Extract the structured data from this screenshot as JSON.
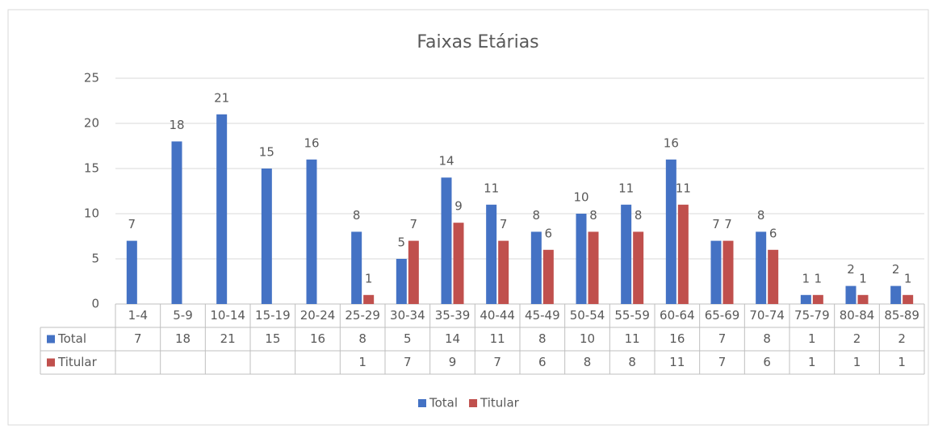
{
  "chart_data": {
    "type": "bar",
    "title": "Faixas Etárias",
    "categories": [
      "1-4",
      "5-9",
      "10-14",
      "15-19",
      "20-24",
      "25-29",
      "30-34",
      "35-39",
      "40-44",
      "45-49",
      "50-54",
      "55-59",
      "60-64",
      "65-69",
      "70-74",
      "75-79",
      "80-84",
      "85-89"
    ],
    "series": [
      {
        "name": "Total",
        "color": "#4472c4",
        "values": [
          7,
          18,
          21,
          15,
          16,
          8,
          5,
          14,
          11,
          8,
          10,
          11,
          16,
          7,
          8,
          1,
          2,
          2
        ]
      },
      {
        "name": "Titular",
        "color": "#c0504d",
        "values": [
          null,
          null,
          null,
          null,
          null,
          1,
          7,
          9,
          7,
          6,
          8,
          8,
          11,
          7,
          6,
          1,
          1,
          1
        ]
      }
    ],
    "ylim": [
      0,
      25
    ],
    "yticks": [
      0,
      5,
      10,
      15,
      20,
      25
    ],
    "grid": true,
    "legend": "bottom",
    "data_table": true
  }
}
